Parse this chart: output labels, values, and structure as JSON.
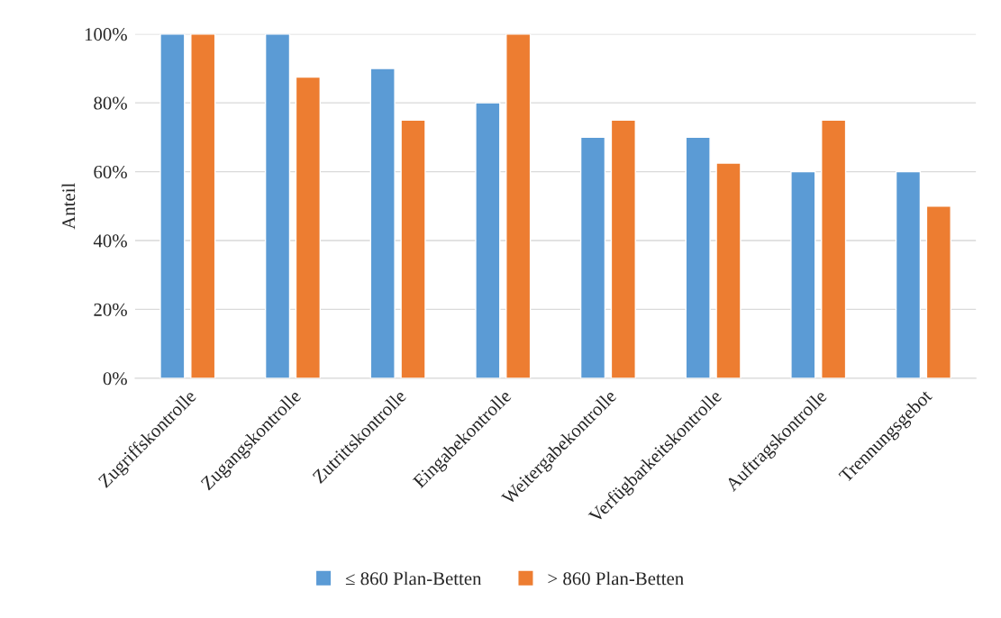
{
  "chart_data": {
    "type": "bar",
    "ylabel": "Anteil",
    "categories": [
      "Zugriffskontrolle",
      "Zugangskontrolle",
      "Zutrittskontrolle",
      "Eingabekontrolle",
      "Weitergabekontrolle",
      "Verfügbarkeitskontrolle",
      "Auftragskontrolle",
      "Trennungsgebot"
    ],
    "series": [
      {
        "name": "≤ 860 Plan-Betten",
        "color": "#5b9bd5",
        "values": [
          100,
          100,
          90,
          80,
          70,
          70,
          60,
          60
        ]
      },
      {
        "name": "> 860 Plan-Betten",
        "color": "#ed7d31",
        "values": [
          100,
          87.5,
          75,
          100,
          75,
          62.5,
          75,
          50
        ]
      }
    ],
    "ylim": [
      0,
      100
    ],
    "yticks": [
      {
        "value": 0,
        "label": "0%"
      },
      {
        "value": 20,
        "label": "20%"
      },
      {
        "value": 40,
        "label": "40%"
      },
      {
        "value": 60,
        "label": "60%"
      },
      {
        "value": 80,
        "label": "80%"
      },
      {
        "value": 100,
        "label": "100%"
      }
    ],
    "grid": "y",
    "legend": "bottom"
  }
}
